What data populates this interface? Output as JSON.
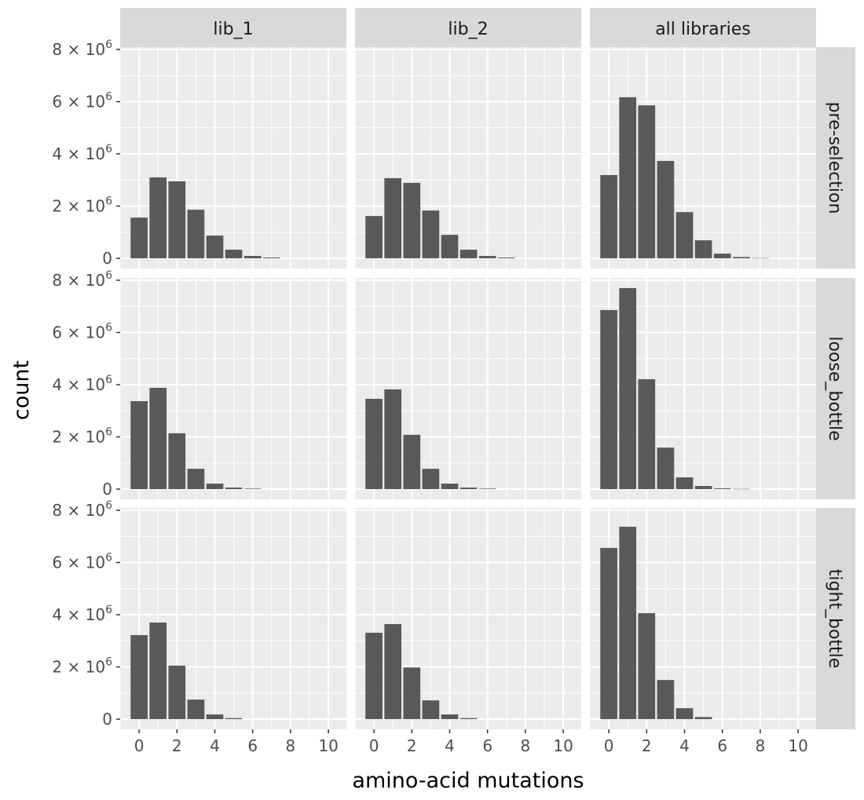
{
  "chart_data": {
    "type": "bar",
    "xlabel": "amino-acid mutations",
    "ylabel": "count",
    "xlim": [
      -1,
      10.95
    ],
    "ylim": [
      -390000,
      8090000
    ],
    "x_ticks": [
      0,
      2,
      4,
      6,
      8,
      10
    ],
    "y_ticks": [
      0,
      2000000,
      4000000,
      6000000,
      8000000
    ],
    "y_tick_labels": [
      {
        "mant": "0",
        "exp": ""
      },
      {
        "mant": "2 × 10",
        "exp": "6"
      },
      {
        "mant": "4 × 10",
        "exp": "6"
      },
      {
        "mant": "6 × 10",
        "exp": "6"
      },
      {
        "mant": "8 × 10",
        "exp": "6"
      }
    ],
    "grid": true,
    "colors": {
      "bar": "#595959",
      "panel": "#ebebeb",
      "strip": "#d9d9d9",
      "grid": "#ffffff"
    },
    "columns": [
      "lib_1",
      "lib_2",
      "all libraries"
    ],
    "rows": [
      "pre-selection",
      "loose_bottle",
      "tight_bottle"
    ],
    "panels": [
      {
        "row": "pre-selection",
        "col": "lib_1",
        "x": [
          0,
          1,
          2,
          3,
          4,
          5,
          6,
          7
        ],
        "values": [
          1560000,
          3100000,
          2950000,
          1860000,
          870000,
          330000,
          90000,
          30000
        ]
      },
      {
        "row": "pre-selection",
        "col": "lib_2",
        "x": [
          0,
          1,
          2,
          3,
          4,
          5,
          6,
          7
        ],
        "values": [
          1620000,
          3070000,
          2890000,
          1830000,
          900000,
          330000,
          90000,
          30000
        ]
      },
      {
        "row": "pre-selection",
        "col": "all libraries",
        "x": [
          0,
          1,
          2,
          3,
          4,
          5,
          6,
          7,
          8
        ],
        "values": [
          3190000,
          6170000,
          5860000,
          3730000,
          1770000,
          690000,
          180000,
          50000,
          10000
        ]
      },
      {
        "row": "loose_bottle",
        "col": "lib_1",
        "x": [
          0,
          1,
          2,
          3,
          4,
          5,
          6
        ],
        "values": [
          3370000,
          3880000,
          2140000,
          780000,
          210000,
          60000,
          20000
        ]
      },
      {
        "row": "loose_bottle",
        "col": "lib_2",
        "x": [
          0,
          1,
          2,
          3,
          4,
          5,
          6
        ],
        "values": [
          3460000,
          3820000,
          2080000,
          780000,
          210000,
          60000,
          20000
        ]
      },
      {
        "row": "loose_bottle",
        "col": "all libraries",
        "x": [
          0,
          1,
          2,
          3,
          4,
          5,
          6,
          7
        ],
        "values": [
          6860000,
          7700000,
          4210000,
          1590000,
          450000,
          120000,
          30000,
          10000
        ]
      },
      {
        "row": "tight_bottle",
        "col": "lib_1",
        "x": [
          0,
          1,
          2,
          3,
          4,
          5
        ],
        "values": [
          3220000,
          3700000,
          2050000,
          750000,
          180000,
          40000
        ]
      },
      {
        "row": "tight_bottle",
        "col": "lib_2",
        "x": [
          0,
          1,
          2,
          3,
          4,
          5
        ],
        "values": [
          3310000,
          3640000,
          1980000,
          720000,
          180000,
          40000
        ]
      },
      {
        "row": "tight_bottle",
        "col": "all libraries",
        "x": [
          0,
          1,
          2,
          3,
          4,
          5
        ],
        "values": [
          6560000,
          7370000,
          4060000,
          1500000,
          420000,
          80000
        ]
      }
    ]
  }
}
